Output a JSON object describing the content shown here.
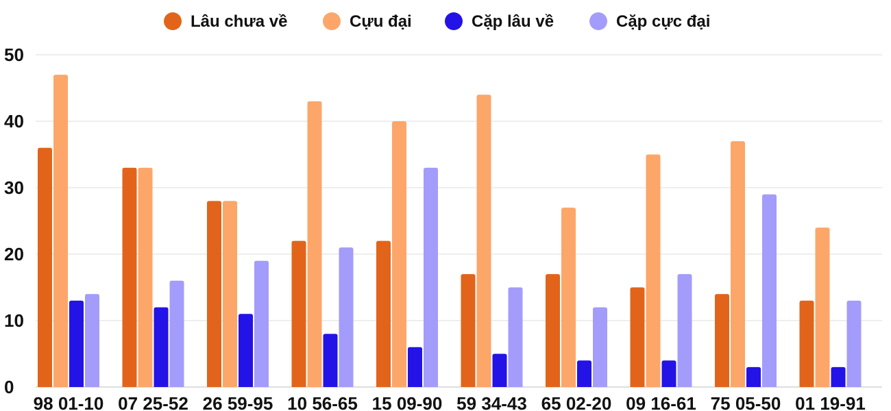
{
  "chart_data": {
    "type": "bar",
    "title": "",
    "xlabel": "",
    "ylabel": "",
    "ylim": [
      0,
      50
    ],
    "yticks": [
      0,
      10,
      20,
      30,
      40,
      50
    ],
    "grid": true,
    "legend_position": "top-center",
    "categories": [
      "98 01-10",
      "07 25-52",
      "26 59-95",
      "10 56-65",
      "15 09-90",
      "59 34-43",
      "65 02-20",
      "09 16-61",
      "75 05-50",
      "01 19-91"
    ],
    "series": [
      {
        "name": "Lâu chưa về",
        "color": "#e2641a",
        "values": [
          36,
          33,
          28,
          22,
          22,
          17,
          17,
          15,
          14,
          13
        ]
      },
      {
        "name": "Cựu đại",
        "color": "#fca66a",
        "values": [
          47,
          33,
          28,
          43,
          40,
          44,
          27,
          35,
          37,
          24
        ]
      },
      {
        "name": "Cặp lâu về",
        "color": "#2313e6",
        "values": [
          13,
          12,
          11,
          8,
          6,
          5,
          4,
          4,
          3,
          3
        ]
      },
      {
        "name": "Cặp cực đại",
        "color": "#a39cfb",
        "values": [
          14,
          16,
          19,
          21,
          33,
          15,
          12,
          17,
          29,
          13
        ]
      }
    ]
  }
}
